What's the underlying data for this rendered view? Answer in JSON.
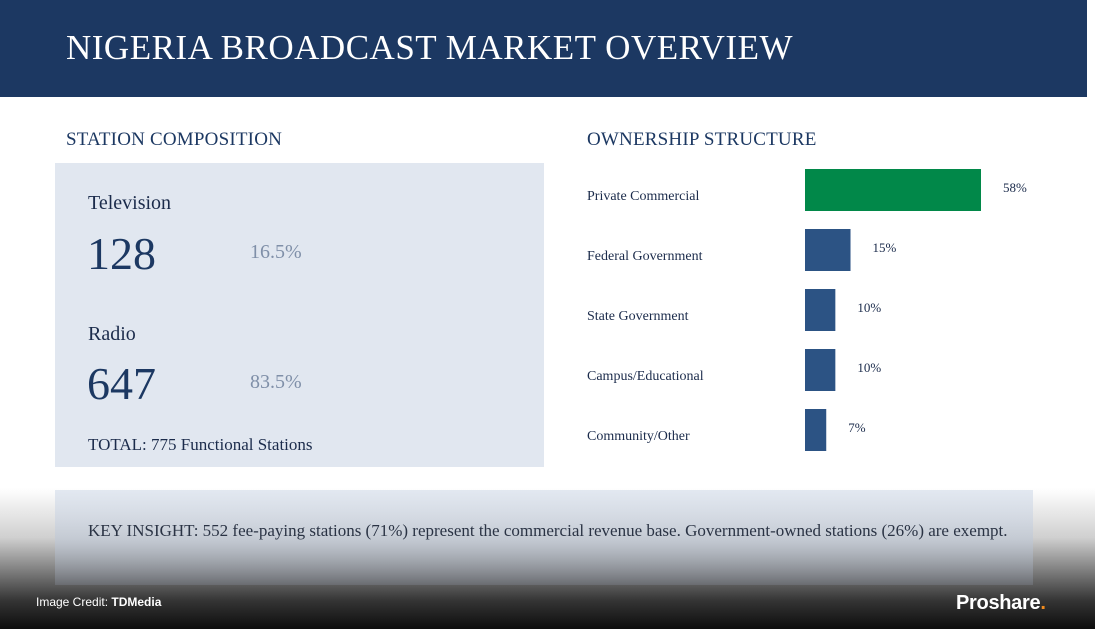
{
  "header": {
    "title": "NIGERIA BROADCAST MARKET OVERVIEW"
  },
  "composition": {
    "title": "STATION COMPOSITION",
    "items": [
      {
        "label": "Television",
        "value": "128",
        "pct": "16.5%"
      },
      {
        "label": "Radio",
        "value": "647",
        "pct": "83.5%"
      }
    ],
    "total": "TOTAL: 775 Functional Stations"
  },
  "ownership": {
    "title": "OWNERSHIP STRUCTURE"
  },
  "chart_data": {
    "type": "bar",
    "orientation": "horizontal",
    "title": "OWNERSHIP STRUCTURE",
    "categories": [
      "Private Commercial",
      "Federal Government",
      "State Government",
      "Campus/Educational",
      "Community/Other"
    ],
    "values": [
      58,
      15,
      10,
      10,
      7
    ],
    "value_labels": [
      "58%",
      "15%",
      "10%",
      "10%",
      "7%"
    ],
    "colors": [
      "#018849",
      "#2c5384",
      "#2c5384",
      "#2c5384",
      "#2c5384"
    ],
    "xlim": [
      0,
      58
    ],
    "grid": false,
    "legend": "none"
  },
  "insight": {
    "text": "KEY INSIGHT: 552 fee-paying stations (71%) represent the commercial revenue base. Government-owned stations (26%) are exempt."
  },
  "footer": {
    "credit_prefix": "Image Credit:",
    "credit_source": "TDMedia",
    "brand": "Proshare",
    "brand_dot": "."
  }
}
